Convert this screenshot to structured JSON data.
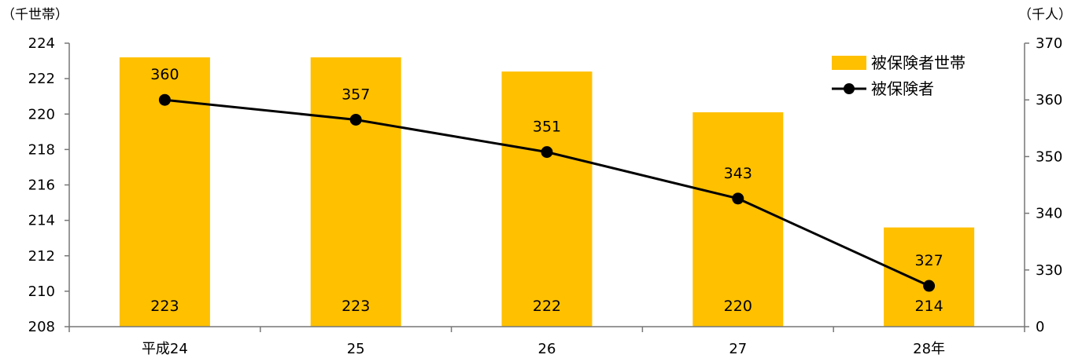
{
  "chart_data": {
    "type": "bar+line",
    "categories": [
      "平成24",
      "25",
      "26",
      "27",
      "28年"
    ],
    "series": [
      {
        "name": "被保険者世帯",
        "type": "bar",
        "axis": "left",
        "color": "#FFC000",
        "values": [
          223.2,
          223.2,
          222.4,
          220.1,
          213.6
        ],
        "labels": [
          "223",
          "223",
          "222",
          "220",
          "214"
        ]
      },
      {
        "name": "被保険者",
        "type": "line",
        "axis": "right",
        "color": "#000000",
        "values": [
          360,
          356.5,
          350.8,
          342.6,
          327.2
        ],
        "labels": [
          "360",
          "357",
          "351",
          "343",
          "327"
        ]
      }
    ],
    "y_left": {
      "unit": "（千世帯）",
      "range": [
        208,
        224
      ],
      "ticks": [
        "208",
        "210",
        "212",
        "214",
        "216",
        "218",
        "220",
        "222",
        "224"
      ]
    },
    "y_right": {
      "unit": "（千人）",
      "range": [
        320,
        370
      ],
      "axis_break": true,
      "ticks": [
        "0",
        "330",
        "340",
        "350",
        "360",
        "370"
      ],
      "tick_values": [
        320,
        330,
        340,
        350,
        360,
        370
      ]
    },
    "legend_position": "top-right",
    "grid": false
  }
}
